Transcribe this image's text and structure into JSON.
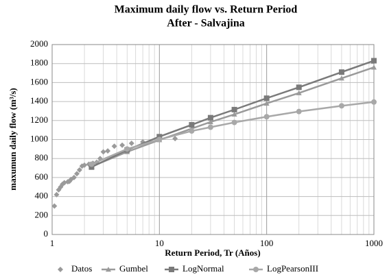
{
  "chart_data": {
    "type": "line",
    "title": "Maximum daily flow vs. Return Period",
    "subtitle": "After - Salvajina",
    "x_label": "Return Period, Tr (Años)",
    "y_label": "maxumun daily flow (m³/s)",
    "xscale": "log",
    "xlim": [
      1,
      1000
    ],
    "ylim": [
      0,
      2000
    ],
    "xticks": [
      1,
      10,
      100,
      1000
    ],
    "yticks": [
      0,
      200,
      400,
      600,
      800,
      1000,
      1200,
      1400,
      1600,
      1800,
      2000
    ],
    "grid": true,
    "legend": "bottom",
    "series": [
      {
        "name": "Datos",
        "mode": "markers",
        "marker": "diamond",
        "color": "#9a9a9a",
        "x": [
          1.05,
          1.1,
          1.15,
          1.2,
          1.25,
          1.3,
          1.4,
          1.45,
          1.5,
          1.6,
          1.7,
          1.8,
          1.9,
          2.0,
          2.2,
          2.4,
          2.6,
          2.8,
          3.0,
          3.3,
          3.8,
          4.5,
          5.5,
          7,
          14
        ],
        "values": [
          300,
          420,
          470,
          500,
          530,
          545,
          555,
          560,
          580,
          600,
          640,
          680,
          720,
          730,
          740,
          750,
          760,
          800,
          870,
          880,
          930,
          940,
          960,
          975,
          1010
        ]
      },
      {
        "name": "Gumbel",
        "mode": "lines+markers",
        "marker": "triangle",
        "color": "#9a9a9a",
        "x": [
          2.33,
          5,
          10,
          20,
          30,
          50,
          100,
          200,
          500,
          1000
        ],
        "values": [
          715,
          870,
          995,
          1115,
          1185,
          1265,
          1380,
          1490,
          1645,
          1760
        ]
      },
      {
        "name": "LogNormal",
        "mode": "lines+markers",
        "marker": "square",
        "color": "#7a7a7a",
        "x": [
          2.33,
          5,
          10,
          20,
          30,
          50,
          100,
          200,
          500,
          1000
        ],
        "values": [
          710,
          890,
          1030,
          1155,
          1230,
          1315,
          1435,
          1550,
          1710,
          1830
        ]
      },
      {
        "name": "LogPearsonIII",
        "mode": "lines+markers",
        "marker": "circle",
        "color": "#a8a8a8",
        "x": [
          2.33,
          5,
          10,
          20,
          30,
          50,
          100,
          200,
          500,
          1000
        ],
        "values": [
          740,
          900,
          1000,
          1090,
          1130,
          1180,
          1240,
          1295,
          1355,
          1395
        ]
      }
    ]
  }
}
